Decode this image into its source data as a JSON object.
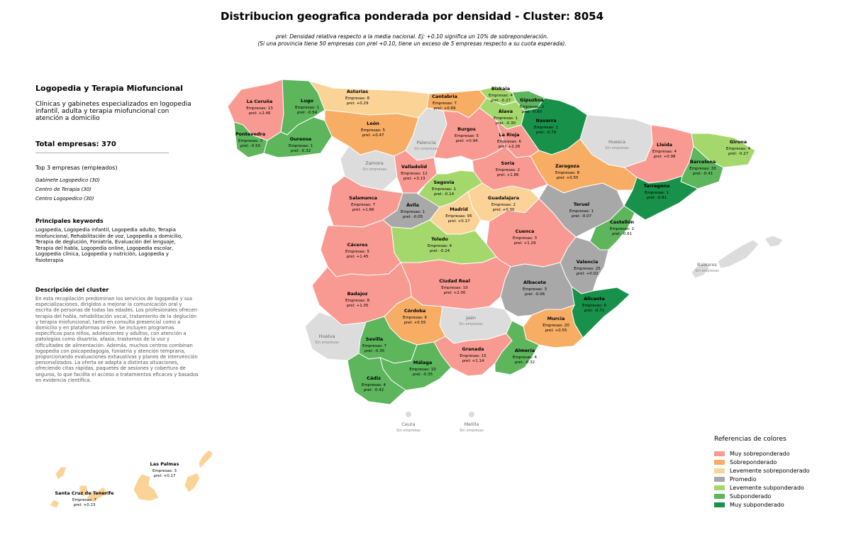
{
  "title": "Distribucion geografica ponderada por densidad - Cluster: 8054",
  "note_line1": "ρrel: Densidad relativa respecto a la media nacional. Ej: +0.10 significa un 10% de sobreponderación.",
  "note_line2": "(Si una provincia tiene 50 empresas con ρrel +0.10, tiene un exceso de 5 empresas respecto a su cuota esperada).",
  "sidebar": {
    "cluster_name": "Logopedia y Terapia Miofuncional",
    "cluster_desc": "Clínicas y gabinetes especializados en logopedia infantil, adulta y terapia miofuncional con atención a domicilio",
    "total_label": "Total empresas: 370",
    "top3_title": "Top 3 empresas (empleados)",
    "top3": [
      "Gabinete Logopedico (30)",
      "Centro de Terapia (30)",
      "Centro Logopedico (30)"
    ],
    "keywords_title": "Principales keywords",
    "keywords": "Logopedia, Logopedia infantil, Logopedia adulto, Terapia miofuncional, Rehabilitación de voz, Logopedia a domicilio, Terapia de deglución, Foniatría, Evaluación del lenguaje, Terapia del habla, Logopedia online, Logopedia escolar, Logopedia clínica, Logopedia y nutrición, Logopedia y fisioterapia",
    "desc_title": "Descripción del cluster",
    "desc": "En esta recopilación predominan los servicios de logopedia y sus especializaciones, dirigidos a mejorar la comunicación oral y escrita de personas de todas las edades. Los profesionales ofrecen terapia del habla, rehabilitación vocal, tratamiento de la deglución y terapia miofuncional, tanto en consulta presencial como a domicilio y en plataformas online. Se incluyen programas específicos para niños, adolescentes y adultos, con atención a patologías como disartria, afasia, trastornos de la voz y dificultades de alimentación. Además, muchos centros combinan logopedia con psicopedagogía, foniatría y atención temprana, proporcionando evaluaciones exhaustivas y planes de intervención personalizados. La oferta se adapta a distintas situaciones, ofreciendo citas rápidas, paquetes de sesiones y cobertura de seguros, lo que facilita el acceso a tratamientos eficaces y basados en evidencia científica."
  },
  "legend": {
    "title": "Referencias de colores",
    "items": [
      {
        "label": "Muy sobreponderado",
        "color": "#f99a92"
      },
      {
        "label": "Sobreponderado",
        "color": "#f7ad63"
      },
      {
        "label": "Levemente sobreponderado",
        "color": "#fbd397"
      },
      {
        "label": "Promedio",
        "color": "#a8a8a8"
      },
      {
        "label": "Levemente subponderado",
        "color": "#a5d86c"
      },
      {
        "label": "Subponderado",
        "color": "#5db55c"
      },
      {
        "label": "Muy subponderado",
        "color": "#18924a"
      }
    ],
    "no_data_color": "#dcdcdc"
  },
  "provinces": [
    {
      "name": "La Coruña",
      "empresas": "Empresas: 13",
      "rho": "ρrel: +2.46",
      "cat": 0
    },
    {
      "name": "Lugo",
      "empresas": "Empresas: 1",
      "rho": "ρrel: -0.54",
      "cat": 5
    },
    {
      "name": "Asturias",
      "empresas": "Empresas: 8",
      "rho": "ρrel: +0.29",
      "cat": 2
    },
    {
      "name": "Cantabria",
      "empresas": "Empresas: 7",
      "rho": "ρrel: +0.69",
      "cat": 1
    },
    {
      "name": "Bizkaia",
      "empresas": "Empresas: 4",
      "rho": "ρrel: -0.27",
      "cat": 4
    },
    {
      "name": "Gipuzkoa",
      "empresas": "Empresas: 2",
      "rho": "ρrel: -0.60",
      "cat": 5
    },
    {
      "name": "Álava",
      "empresas": "Empresas: 1",
      "rho": "ρrel: -0.30",
      "cat": 4
    },
    {
      "name": "Navarra",
      "empresas": "Empresas: 1",
      "rho": "ρrel: -0.79",
      "cat": 6
    },
    {
      "name": "Pontevedra",
      "empresas": "Empresas: 3",
      "rho": "ρrel: -0.50",
      "cat": 5
    },
    {
      "name": "Ourense",
      "empresas": "Empresas: 1",
      "rho": "ρrel: -0.32",
      "cat": 5
    },
    {
      "name": "León",
      "empresas": "Empresas: 5",
      "rho": "ρrel: +0.47",
      "cat": 1
    },
    {
      "name": "Burgos",
      "empresas": "Empresas: 5",
      "rho": "ρrel: +0.94",
      "cat": 0
    },
    {
      "name": "La Rioja",
      "empresas": "Empresas: 6",
      "rho": "ρrel: +2.26",
      "cat": 0
    },
    {
      "name": "Lleida",
      "empresas": "Empresas: 4",
      "rho": "ρrel: +0.98",
      "cat": 0
    },
    {
      "name": "Girona",
      "empresas": "Empresas: 4",
      "rho": "ρrel: -0.27",
      "cat": 4
    },
    {
      "name": "Barcelona",
      "empresas": "Empresas: 33",
      "rho": "ρrel: -0.41",
      "cat": 5
    },
    {
      "name": "Zaragoza",
      "empresas": "Empresas: 8",
      "rho": "ρrel: +0.55",
      "cat": 1
    },
    {
      "name": "Valladolid",
      "empresas": "Empresas: 12",
      "rho": "ρrel: +3.13",
      "cat": 0
    },
    {
      "name": "Soria",
      "empresas": "Empresas: 2",
      "rho": "ρrel: +1.86",
      "cat": 0
    },
    {
      "name": "Segovia",
      "empresas": "Empresas: 1",
      "rho": "ρrel: -0.14",
      "cat": 4
    },
    {
      "name": "Tarragona",
      "empresas": "Empresas: 1",
      "rho": "ρrel: -0.81",
      "cat": 6
    },
    {
      "name": "Salamanca",
      "empresas": "Empresas: 7",
      "rho": "ρrel: +1.66",
      "cat": 0
    },
    {
      "name": "Ávila",
      "empresas": "Empresas: 1",
      "rho": "ρrel: -0.05",
      "cat": 3
    },
    {
      "name": "Madrid",
      "empresas": "Empresas: 95",
      "rho": "ρrel: +0.17",
      "cat": 2
    },
    {
      "name": "Guadalajara",
      "empresas": "Empresas: 2",
      "rho": "ρrel: +0.30",
      "cat": 2
    },
    {
      "name": "Teruel",
      "empresas": "Empresas: 1",
      "rho": "ρrel: -0.07",
      "cat": 3
    },
    {
      "name": "Castellón",
      "empresas": "Empresas: 2",
      "rho": "ρrel: -0.61",
      "cat": 5
    },
    {
      "name": "Cáceres",
      "empresas": "Empresas: 5",
      "rho": "ρrel: +1.45",
      "cat": 0
    },
    {
      "name": "Toledo",
      "empresas": "Empresas: 4",
      "rho": "ρrel: -0.24",
      "cat": 4
    },
    {
      "name": "Cuenca",
      "empresas": "Empresas: 3",
      "rho": "ρrel: +1.29",
      "cat": 0
    },
    {
      "name": "Valencia",
      "empresas": "Empresas: 25",
      "rho": "ρrel: +0.02",
      "cat": 3
    },
    {
      "name": "Ciudad Real",
      "empresas": "Empresas: 10",
      "rho": "ρrel: +2.00",
      "cat": 0
    },
    {
      "name": "Badajoz",
      "empresas": "Empresas: 8",
      "rho": "ρrel: +1.05",
      "cat": 0
    },
    {
      "name": "Albacete",
      "empresas": "Empresas: 3",
      "rho": "ρrel: -0.06",
      "cat": 3
    },
    {
      "name": "Alicante",
      "empresas": "Empresas: 6",
      "rho": "ρrel: -0.71",
      "cat": 6
    },
    {
      "name": "Córdoba",
      "empresas": "Empresas: 6",
      "rho": "ρrel: +0.55",
      "cat": 1
    },
    {
      "name": "Murcia",
      "empresas": "Empresas: 20",
      "rho": "ρrel: +0.55",
      "cat": 1
    },
    {
      "name": "Sevilla",
      "empresas": "Empresas: 7",
      "rho": "ρrel: -0.35",
      "cat": 5
    },
    {
      "name": "Granada",
      "empresas": "Empresas: 15",
      "rho": "ρrel: +1.14",
      "cat": 0
    },
    {
      "name": "Almería",
      "empresas": "Empresas: 4",
      "rho": "ρrel: -0.32",
      "cat": 5
    },
    {
      "name": "Málaga",
      "empresas": "Empresas: 10",
      "rho": "ρrel: -0.35",
      "cat": 5
    },
    {
      "name": "Cádiz",
      "empresas": "Empresas: 4",
      "rho": "ρrel: -0.42",
      "cat": 5
    },
    {
      "name": "Las Palmas",
      "empresas": "Empresas: 3",
      "rho": "ρrel: +0.17",
      "cat": 2
    },
    {
      "name": "Santa Cruz de Tenerife",
      "empresas": "Empresas: 7",
      "rho": "ρrel: +0.23",
      "cat": 2
    }
  ],
  "no_data": [
    {
      "name": "Palencia",
      "label": "Sin empresas"
    },
    {
      "name": "Huesca",
      "label": "Sin empresas"
    },
    {
      "name": "Zamora",
      "label": "Sin empresas"
    },
    {
      "name": "Baleares",
      "label": "Sin empresas"
    },
    {
      "name": "Jaén",
      "label": "Sin empresas"
    },
    {
      "name": "Huelva",
      "label": "Sin empresas"
    },
    {
      "name": "Ceuta",
      "label": "Sin empresas"
    },
    {
      "name": "Melilla",
      "label": "Sin empresas"
    }
  ]
}
